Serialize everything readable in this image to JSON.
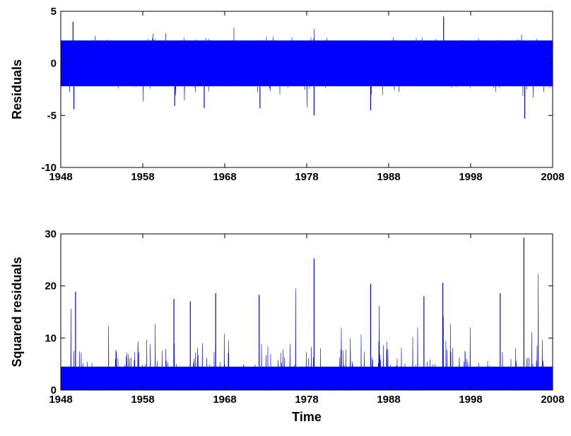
{
  "colors": {
    "series": "#0000ff",
    "axes": "#000000",
    "background": "#ffffff"
  },
  "chart_data": [
    {
      "type": "line",
      "title": "",
      "xlabel": "",
      "ylabel": "Residuals",
      "xlim": [
        1948,
        2008
      ],
      "ylim": [
        -10,
        5
      ],
      "xticks": [
        1948,
        1958,
        1968,
        1978,
        1988,
        1998,
        2008
      ],
      "yticks": [
        -10,
        -5,
        0,
        5
      ],
      "grid": false,
      "approx_band": {
        "typical_low": -2.2,
        "typical_high": 2.2,
        "min": -5.3,
        "max": 4.5
      },
      "notable_points": [
        {
          "x": 1949.5,
          "y": 4.0
        },
        {
          "x": 1949.6,
          "y": -4.4
        },
        {
          "x": 1961.9,
          "y": -4.1
        },
        {
          "x": 1965.5,
          "y": -4.3
        },
        {
          "x": 1972.3,
          "y": -4.3
        },
        {
          "x": 1978.9,
          "y": -5.0
        },
        {
          "x": 1985.8,
          "y": -4.5
        },
        {
          "x": 1994.7,
          "y": 4.5
        },
        {
          "x": 2004.6,
          "y": -5.3
        }
      ]
    },
    {
      "type": "line",
      "title": "",
      "xlabel": "Time",
      "ylabel": "Squared residuals",
      "xlim": [
        1948,
        2008
      ],
      "ylim": [
        0,
        30
      ],
      "xticks": [
        1948,
        1958,
        1968,
        1978,
        1988,
        1998,
        2008
      ],
      "yticks": [
        0,
        10,
        20,
        30
      ],
      "grid": false,
      "approx_band": {
        "typical_high": 4.5
      },
      "notable_points": [
        {
          "x": 1949.8,
          "y": 18.9
        },
        {
          "x": 1961.8,
          "y": 17.5
        },
        {
          "x": 1963.8,
          "y": 17.0
        },
        {
          "x": 1966.9,
          "y": 18.6
        },
        {
          "x": 1972.2,
          "y": 18.3
        },
        {
          "x": 1978.9,
          "y": 25.3
        },
        {
          "x": 1985.8,
          "y": 20.4
        },
        {
          "x": 1992.3,
          "y": 18.0
        },
        {
          "x": 1994.6,
          "y": 20.6
        },
        {
          "x": 2001.6,
          "y": 18.6
        },
        {
          "x": 2004.5,
          "y": 29.3
        }
      ]
    }
  ]
}
